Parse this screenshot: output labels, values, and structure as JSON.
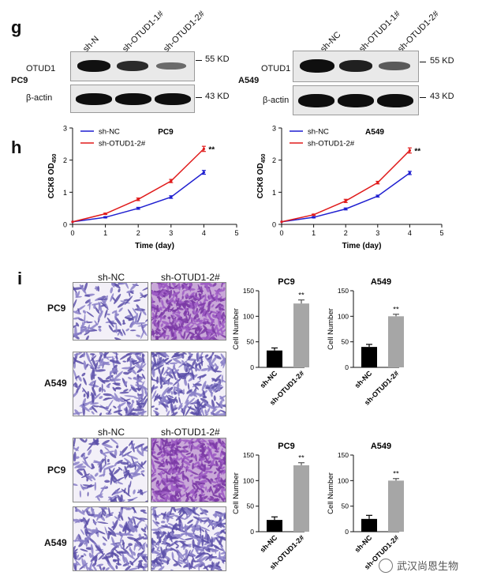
{
  "panels": {
    "g": "g",
    "h": "h",
    "i": "i"
  },
  "blot_pc9": {
    "cell_line": "PC9",
    "lanes": [
      "sh-N",
      "sh-OTUD1-1#",
      "sh-OTUD1-2#"
    ],
    "rows": [
      {
        "protein": "OTUD1",
        "size": "55 KD",
        "intensity": [
          1.0,
          0.7,
          0.35
        ]
      },
      {
        "protein": "β-actin",
        "size": "43 KD",
        "intensity": [
          1.0,
          1.0,
          1.0
        ]
      }
    ]
  },
  "blot_a549": {
    "cell_line": "A549",
    "lanes": [
      "sh-NC",
      "sh-OTUD1-1#",
      "sh-OTUD1-2#"
    ],
    "rows": [
      {
        "protein": "OTUD1",
        "size": "55 KD",
        "intensity": [
          1.0,
          0.75,
          0.4
        ]
      },
      {
        "protein": "β-actin",
        "size": "43 KD",
        "intensity": [
          1.0,
          1.0,
          1.0
        ]
      }
    ]
  },
  "micro": {
    "groups": [
      {
        "cols": [
          "sh-NC",
          "sh-OTUD1-2#"
        ],
        "rows": [
          "PC9",
          "A549"
        ],
        "density": [
          [
            0.25,
            1.0
          ],
          [
            0.45,
            0.6
          ]
        ]
      },
      {
        "cols": [
          "sh-NC",
          "sh-OTUD1-2#"
        ],
        "rows": [
          "PC9",
          "A549"
        ],
        "density": [
          [
            0.3,
            1.0
          ],
          [
            0.5,
            0.7
          ]
        ]
      }
    ]
  },
  "chart_data": [
    {
      "type": "line",
      "title": "PC9",
      "xlabel": "Time (day)",
      "ylabel": "CCK8 OD450",
      "ylabel_main": "CCK8 OD",
      "ylabel_sub": "450",
      "x": [
        0,
        1,
        2,
        3,
        4
      ],
      "xlim": [
        0,
        5
      ],
      "ylim": [
        0,
        3
      ],
      "xticks": [
        0,
        1,
        2,
        3,
        4,
        5
      ],
      "yticks": [
        0,
        1,
        2,
        3
      ],
      "series": [
        {
          "name": "sh-NC",
          "color": "#1f1fd0",
          "values": [
            0.08,
            0.22,
            0.5,
            0.85,
            1.62
          ],
          "err": [
            0.01,
            0.02,
            0.03,
            0.04,
            0.06
          ]
        },
        {
          "name": "sh-OTUD1-2#",
          "color": "#e01b1b",
          "values": [
            0.08,
            0.33,
            0.78,
            1.35,
            2.35
          ],
          "err": [
            0.01,
            0.02,
            0.04,
            0.05,
            0.08
          ]
        }
      ],
      "annotation": "**"
    },
    {
      "type": "line",
      "title": "A549",
      "xlabel": "Time (day)",
      "ylabel": "CCK8 OD450",
      "ylabel_main": "CCK8 OD",
      "ylabel_sub": "450",
      "x": [
        0,
        1,
        2,
        3,
        4
      ],
      "xlim": [
        0,
        5
      ],
      "ylim": [
        0,
        3
      ],
      "xticks": [
        0,
        1,
        2,
        3,
        4,
        5
      ],
      "yticks": [
        0,
        1,
        2,
        3
      ],
      "series": [
        {
          "name": "sh-NC",
          "color": "#1f1fd0",
          "values": [
            0.08,
            0.22,
            0.48,
            0.88,
            1.6
          ],
          "err": [
            0.01,
            0.02,
            0.03,
            0.03,
            0.05
          ]
        },
        {
          "name": "sh-OTUD1-2#",
          "color": "#e01b1b",
          "values": [
            0.08,
            0.3,
            0.73,
            1.3,
            2.3
          ],
          "err": [
            0.01,
            0.02,
            0.05,
            0.04,
            0.08
          ]
        }
      ],
      "annotation": "**"
    },
    {
      "type": "bar",
      "title": "PC9",
      "ylabel": "Cell Number",
      "categories": [
        "sh-NC",
        "sh-OTUD1-2#"
      ],
      "values": [
        33,
        125
      ],
      "err": [
        5,
        7
      ],
      "colors": [
        "#000000",
        "#a6a6a6"
      ],
      "ylim": [
        0,
        150
      ],
      "yticks": [
        0,
        50,
        100,
        150
      ],
      "annotation": "**"
    },
    {
      "type": "bar",
      "title": "A549",
      "ylabel": "Cell Number",
      "categories": [
        "sh-NC",
        "sh-OTUD1-2#"
      ],
      "values": [
        40,
        100
      ],
      "err": [
        5,
        4
      ],
      "colors": [
        "#000000",
        "#a6a6a6"
      ],
      "ylim": [
        0,
        150
      ],
      "yticks": [
        0,
        50,
        100,
        150
      ],
      "annotation": "**"
    },
    {
      "type": "bar",
      "title": "PC9",
      "ylabel": "Cell Number",
      "categories": [
        "sh-NC",
        "sh-OTUD1-2#"
      ],
      "values": [
        23,
        130
      ],
      "err": [
        6,
        5
      ],
      "colors": [
        "#000000",
        "#a6a6a6"
      ],
      "ylim": [
        0,
        150
      ],
      "yticks": [
        0,
        50,
        100,
        150
      ],
      "annotation": "**"
    },
    {
      "type": "bar",
      "title": "A549",
      "ylabel": "Cell Number",
      "categories": [
        "sh-NC",
        "sh-OTUD1-2#"
      ],
      "values": [
        25,
        100
      ],
      "err": [
        7,
        4
      ],
      "colors": [
        "#000000",
        "#a6a6a6"
      ],
      "ylim": [
        0,
        150
      ],
      "yticks": [
        0,
        50,
        100,
        150
      ],
      "annotation": "**"
    }
  ],
  "watermark": {
    "text": "武汉尚恩生物",
    "icon": "wechat-icon"
  }
}
